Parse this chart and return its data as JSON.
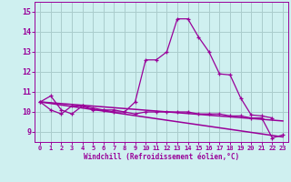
{
  "xlabel": "Windchill (Refroidissement éolien,°C)",
  "background_color": "#cff0f0",
  "line_color": "#990099",
  "grid_color": "#aacccc",
  "xlim": [
    -0.5,
    23.5
  ],
  "ylim": [
    8.5,
    15.5
  ],
  "xticks": [
    0,
    1,
    2,
    3,
    4,
    5,
    6,
    7,
    8,
    9,
    10,
    11,
    12,
    13,
    14,
    15,
    16,
    17,
    18,
    19,
    20,
    21,
    22,
    23
  ],
  "yticks": [
    9,
    10,
    11,
    12,
    13,
    14,
    15
  ],
  "series1_x": [
    0,
    1,
    2,
    3,
    4,
    5,
    6,
    7,
    8,
    9,
    10,
    11,
    12,
    13,
    14,
    15,
    16,
    17,
    18,
    19,
    20,
    21,
    22
  ],
  "series1_y": [
    10.5,
    10.8,
    10.1,
    9.9,
    10.3,
    10.2,
    10.1,
    10.1,
    10.0,
    10.5,
    12.6,
    12.6,
    13.0,
    14.65,
    14.65,
    13.75,
    13.0,
    11.9,
    11.85,
    10.7,
    9.85,
    9.8,
    9.7
  ],
  "series2_x": [
    0,
    1,
    2,
    3,
    4,
    5,
    6,
    7,
    8,
    9,
    10,
    11,
    12,
    13,
    14,
    15,
    16,
    17,
    18,
    19,
    20,
    21,
    22,
    23
  ],
  "series2_y": [
    10.5,
    10.1,
    9.9,
    10.3,
    10.3,
    10.1,
    10.1,
    10.0,
    10.0,
    9.9,
    10.0,
    10.0,
    10.0,
    10.0,
    10.0,
    9.9,
    9.9,
    9.9,
    9.8,
    9.8,
    9.7,
    9.7,
    8.7,
    8.85
  ],
  "series3_x": [
    0,
    23
  ],
  "series3_y": [
    10.5,
    9.55
  ],
  "series4_x": [
    0,
    23
  ],
  "series4_y": [
    10.5,
    8.75
  ]
}
